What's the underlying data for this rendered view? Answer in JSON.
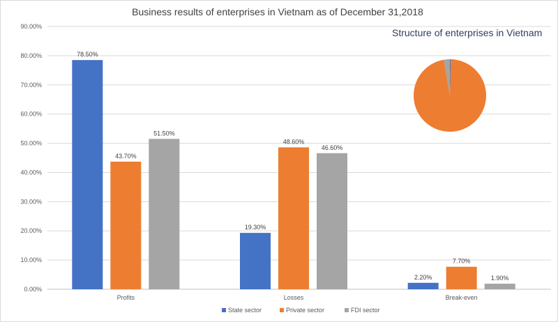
{
  "chart_data": [
    {
      "type": "bar",
      "title": "Business results of enterprises in Vietnam as of December 31,2018",
      "xlabel": "",
      "ylabel": "",
      "ylim": [
        0,
        90
      ],
      "yticks": [
        "0.00%",
        "10.00%",
        "20.00%",
        "30.00%",
        "40.00%",
        "50.00%",
        "60.00%",
        "70.00%",
        "80.00%",
        "90.00%"
      ],
      "grid": true,
      "legend_position": "bottom",
      "categories": [
        "Profits",
        "Losses",
        "Break-even"
      ],
      "series": [
        {
          "name": "State sector",
          "color": "#4472c4",
          "values": [
            78.5,
            19.3,
            2.2
          ],
          "labels": [
            "78.50%",
            "19.30%",
            "2.20%"
          ]
        },
        {
          "name": "Private sector",
          "color": "#ed7d31",
          "values": [
            43.7,
            48.6,
            7.7
          ],
          "labels": [
            "43.70%",
            "48.60%",
            "7.70%"
          ]
        },
        {
          "name": "FDI sector",
          "color": "#a5a5a5",
          "values": [
            51.5,
            46.6,
            1.9
          ],
          "labels": [
            "51.50%",
            "46.60%",
            "1.90%"
          ]
        }
      ]
    },
    {
      "type": "pie",
      "title": "Structure of enterprises in Vietnam",
      "categories": [
        "State sector",
        "Private sector",
        "FDI sector"
      ],
      "values": [
        0.4,
        96.9,
        2.7
      ],
      "colors": [
        "#4472c4",
        "#ed7d31",
        "#a5a5a5"
      ]
    }
  ]
}
